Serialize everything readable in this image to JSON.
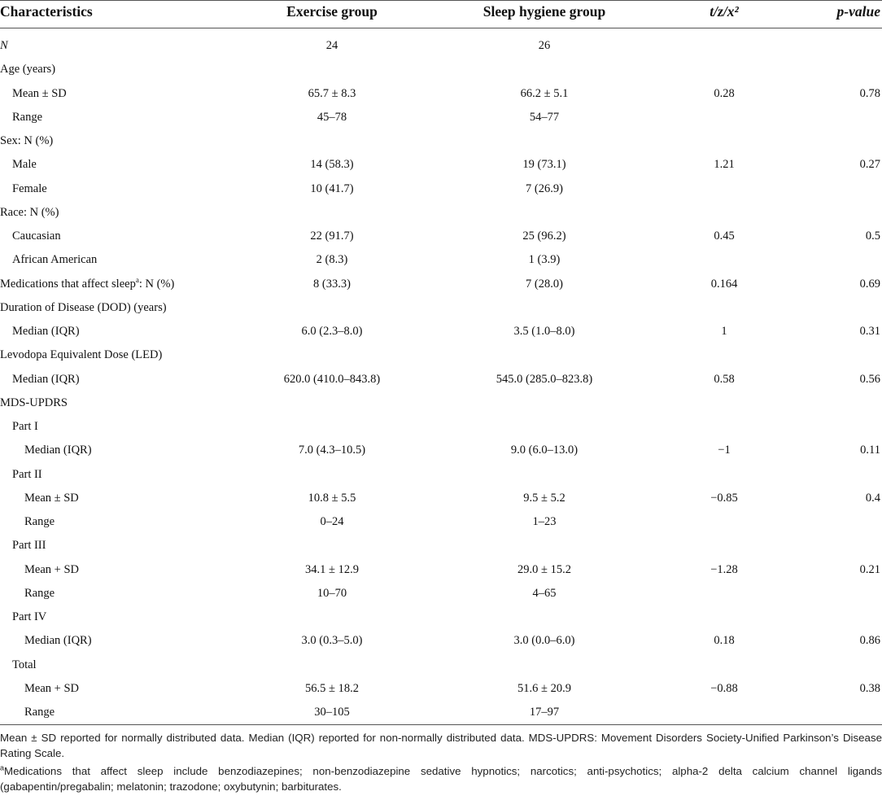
{
  "header": {
    "columns": [
      "Characteristics",
      "Exercise group",
      "Sleep hygiene group",
      "t/z/x²",
      "p-value"
    ]
  },
  "table": {
    "rows": [
      {
        "label": "N",
        "values": [
          "24",
          "26",
          null,
          null
        ]
      },
      {
        "label": "Age (years)",
        "rows": [
          {
            "label": "Mean ± SD",
            "values": [
              "65.7 ± 8.3",
              "66.2 ± 5.1",
              "0.28",
              "0.78"
            ]
          },
          {
            "label": "Range",
            "values": [
              "45–78",
              "54–77",
              null,
              null
            ]
          }
        ]
      },
      {
        "label": "Sex: N (%)",
        "rows": [
          {
            "label": "Male",
            "values": [
              "14 (58.3)",
              "19 (73.1)",
              "1.21",
              "0.27"
            ]
          },
          {
            "label": "Female",
            "values": [
              "10 (41.7)",
              "7 (26.9)",
              null,
              null
            ]
          }
        ]
      },
      {
        "label": "Race: N (%)",
        "rows": [
          {
            "label": "Caucasian",
            "values": [
              "22 (91.7)",
              "25 (96.2)",
              "0.45",
              "0.5"
            ]
          },
          {
            "label": "African American",
            "values": [
              "2 (8.3)",
              "1 (3.9)",
              null,
              null
            ]
          }
        ]
      },
      {
        "label": "Medications that affect sleep",
        "label_note": "a",
        "label_suffix": ": N (%)",
        "values": [
          "8 (33.3)",
          "7 (28.0)",
          "0.164",
          "0.69"
        ]
      },
      {
        "label": "Duration of Disease (DOD) (years)",
        "rows": [
          {
            "label": "Median (IQR)",
            "values": [
              "6.0 (2.3–8.0)",
              "3.5 (1.0–8.0)",
              "1",
              "0.31"
            ]
          }
        ]
      },
      {
        "label": "Levodopa Equivalent Dose (LED)",
        "rows": [
          {
            "label": "Median (IQR)",
            "values": [
              "620.0 (410.0–843.8)",
              "545.0 (285.0–823.8)",
              "0.58",
              "0.56"
            ]
          }
        ]
      },
      {
        "label": "MDS-UPDRS",
        "rows": [
          {
            "label": "Part I",
            "rows": [
              {
                "label": "Median (IQR)",
                "values": [
                  "7.0 (4.3–10.5)",
                  "9.0 (6.0–13.0)",
                  "−1",
                  "0.11"
                ]
              }
            ]
          },
          {
            "label": "Part II",
            "rows": [
              {
                "label": "Mean ± SD",
                "values": [
                  "10.8 ± 5.5",
                  "9.5 ± 5.2",
                  "−0.85",
                  "0.4"
                ]
              },
              {
                "label": "Range",
                "values": [
                  "0–24",
                  "1–23",
                  null,
                  null
                ]
              }
            ]
          },
          {
            "label": "Part III",
            "rows": [
              {
                "label": "Mean + SD",
                "values": [
                  "34.1 ± 12.9",
                  "29.0 ± 15.2",
                  "−1.28",
                  "0.21"
                ]
              },
              {
                "label": "Range",
                "values": [
                  "10–70",
                  "4–65",
                  null,
                  null
                ]
              }
            ]
          },
          {
            "label": "Part IV",
            "rows": [
              {
                "label": "Median (IQR)",
                "values": [
                  "3.0 (0.3–5.0)",
                  "3.0 (0.0–6.0)",
                  "0.18",
                  "0.86"
                ]
              }
            ]
          },
          {
            "label": "Total",
            "rows": [
              {
                "label": "Mean + SD",
                "values": [
                  "56.5 ± 18.2",
                  "51.6 ± 20.9",
                  "−0.88",
                  "0.38"
                ]
              },
              {
                "label": "Range",
                "values": [
                  "30–105",
                  "17–97",
                  null,
                  null
                ]
              }
            ]
          }
        ]
      }
    ]
  },
  "footnotes": [
    {
      "text": "Mean ± SD reported for normally distributed data. Median (IQR) reported for non-normally distributed data. MDS-UPDRS: Movement Disorders Society-Unified Parkinson’s Disease Rating Scale."
    },
    {
      "mark": "a",
      "text": "Medications that affect sleep include benzodiazepines; non-benzodiazepine sedative hypnotics; narcotics; anti-psychotics; alpha-2 delta calcium channel ligands (gabapentin/pregabalin; melatonin; trazodone; oxybutynin; barbiturates."
    }
  ]
}
